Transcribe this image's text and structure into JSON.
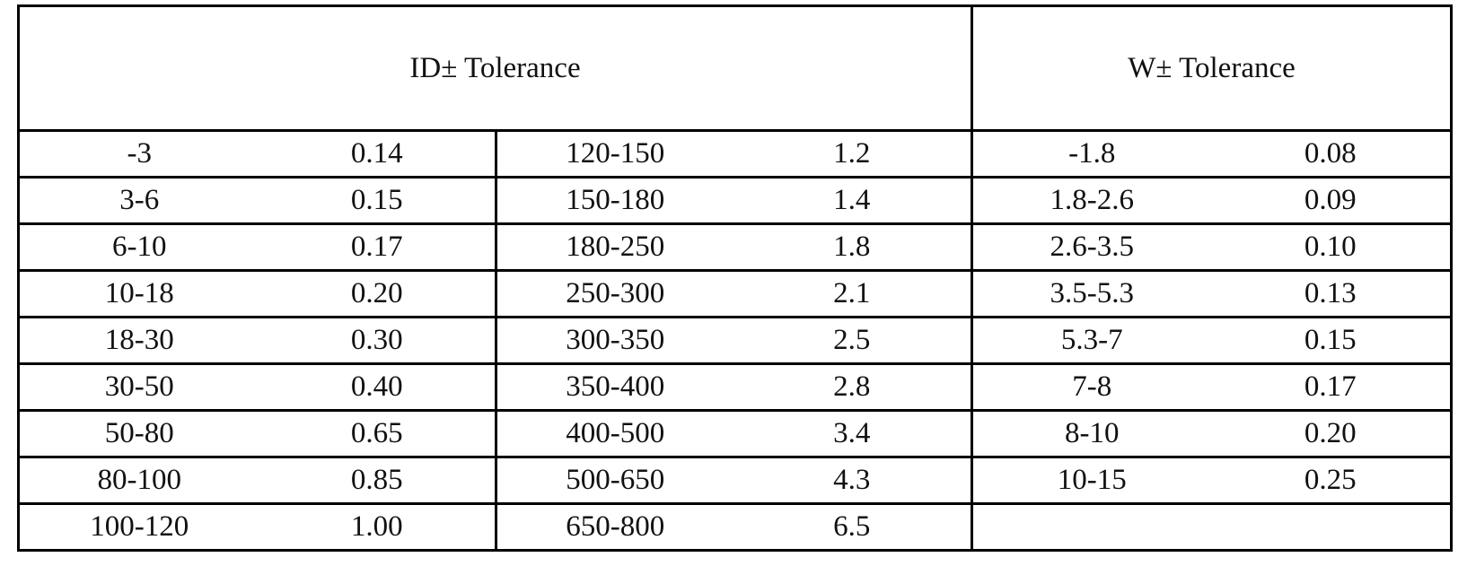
{
  "table": {
    "headers": {
      "id": "ID± Tolerance",
      "w": "W± Tolerance"
    },
    "rows": [
      {
        "id_range_a": "-3",
        "id_tol_a": "0.14",
        "id_range_b": "120-150",
        "id_tol_b": "1.2",
        "w_range": "-1.8",
        "w_tol": "0.08"
      },
      {
        "id_range_a": "3-6",
        "id_tol_a": "0.15",
        "id_range_b": "150-180",
        "id_tol_b": "1.4",
        "w_range": "1.8-2.6",
        "w_tol": "0.09"
      },
      {
        "id_range_a": "6-10",
        "id_tol_a": "0.17",
        "id_range_b": "180-250",
        "id_tol_b": "1.8",
        "w_range": "2.6-3.5",
        "w_tol": "0.10"
      },
      {
        "id_range_a": "10-18",
        "id_tol_a": "0.20",
        "id_range_b": "250-300",
        "id_tol_b": "2.1",
        "w_range": "3.5-5.3",
        "w_tol": "0.13"
      },
      {
        "id_range_a": "18-30",
        "id_tol_a": "0.30",
        "id_range_b": "300-350",
        "id_tol_b": "2.5",
        "w_range": "5.3-7",
        "w_tol": "0.15"
      },
      {
        "id_range_a": "30-50",
        "id_tol_a": "0.40",
        "id_range_b": "350-400",
        "id_tol_b": "2.8",
        "w_range": "7-8",
        "w_tol": "0.17"
      },
      {
        "id_range_a": "50-80",
        "id_tol_a": "0.65",
        "id_range_b": "400-500",
        "id_tol_b": "3.4",
        "w_range": "8-10",
        "w_tol": "0.20"
      },
      {
        "id_range_a": "80-100",
        "id_tol_a": "0.85",
        "id_range_b": "500-650",
        "id_tol_b": "4.3",
        "w_range": "10-15",
        "w_tol": "0.25"
      },
      {
        "id_range_a": "100-120",
        "id_tol_a": "1.00",
        "id_range_b": "650-800",
        "id_tol_b": "6.5",
        "w_range": "",
        "w_tol": ""
      }
    ]
  }
}
